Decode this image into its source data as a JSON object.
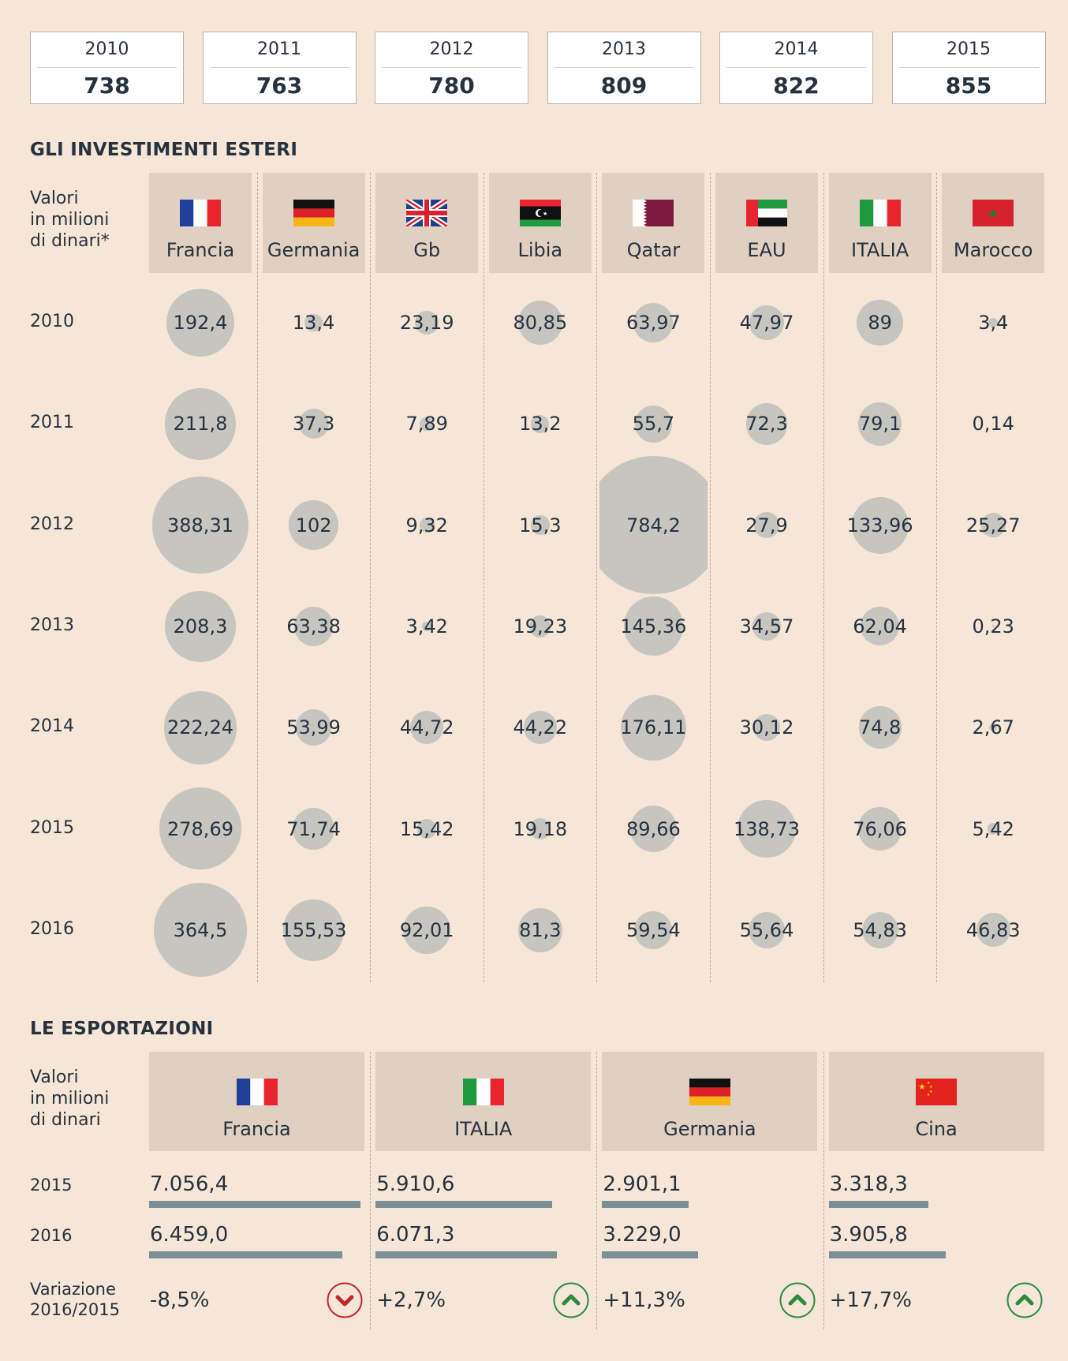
{
  "timeline": [
    {
      "year": "2010",
      "value": "738"
    },
    {
      "year": "2011",
      "value": "763"
    },
    {
      "year": "2012",
      "value": "780"
    },
    {
      "year": "2013",
      "value": "809"
    },
    {
      "year": "2014",
      "value": "822"
    },
    {
      "year": "2015",
      "value": "855"
    }
  ],
  "investments": {
    "title": "GLI INVESTIMENTI ESTERI",
    "unit_line1": "Valori",
    "unit_line2": "in milioni",
    "unit_line3": "di dinari*",
    "countries": [
      "Francia",
      "Germania",
      "Gb",
      "Libia",
      "Qatar",
      "EAU",
      "ITALIA",
      "Marocco"
    ],
    "flags": [
      "france-flag",
      "germany-flag",
      "uk-flag",
      "libya-flag",
      "qatar-flag",
      "uae-flag",
      "italy-flag",
      "morocco-flag"
    ]
  },
  "exports": {
    "title": "LE ESPORTAZIONI",
    "unit_line1": "Valori",
    "unit_line2": "in milioni",
    "unit_line3": "di dinari",
    "countries": [
      "Francia",
      "ITALIA",
      "Germania",
      "Cina"
    ],
    "flags": [
      "france-flag",
      "italy-flag",
      "germany-flag",
      "china-flag"
    ],
    "years": [
      "2015",
      "2016"
    ],
    "variation_label_line1": "Variazione",
    "variation_label_line2": "2016/2015",
    "variations": [
      "-8,5%",
      "+2,7%",
      "+11,3%",
      "+17,7%"
    ],
    "variation_direction": [
      "down",
      "up",
      "up",
      "up"
    ],
    "down_color": "#c0272d",
    "up_color": "#2e8b3e"
  },
  "chart_data": [
    {
      "type": "bubble",
      "title": "GLI INVESTIMENTI ESTERI",
      "categories": [
        "Francia",
        "Germania",
        "Gb",
        "Libia",
        "Qatar",
        "EAU",
        "ITALIA",
        "Marocco"
      ],
      "x": [
        "2010",
        "2011",
        "2012",
        "2013",
        "2014",
        "2015",
        "2016"
      ],
      "series": [
        {
          "name": "Francia",
          "values": [
            192.4,
            211.8,
            388.31,
            208.3,
            222.24,
            278.69,
            364.5
          ],
          "labels": [
            "192,4",
            "211,8",
            "388,31",
            "208,3",
            "222,24",
            "278,69",
            "364,5"
          ]
        },
        {
          "name": "Germania",
          "values": [
            13.4,
            37.3,
            102,
            63.38,
            53.99,
            71.74,
            155.53
          ],
          "labels": [
            "13,4",
            "37,3",
            "102",
            "63,38",
            "53,99",
            "71,74",
            "155,53"
          ]
        },
        {
          "name": "Gb",
          "values": [
            23.19,
            7.89,
            9.32,
            3.42,
            44.72,
            15.42,
            92.01
          ],
          "labels": [
            "23,19",
            "7,89",
            "9,32",
            "3,42",
            "44,72",
            "15,42",
            "92,01"
          ]
        },
        {
          "name": "Libia",
          "values": [
            80.85,
            13.2,
            15.3,
            19.23,
            44.22,
            19.18,
            81.3
          ],
          "labels": [
            "80,85",
            "13,2",
            "15,3",
            "19,23",
            "44,22",
            "19,18",
            "81,3"
          ]
        },
        {
          "name": "Qatar",
          "values": [
            63.97,
            55.7,
            784.2,
            145.36,
            176.11,
            89.66,
            59.54
          ],
          "labels": [
            "63,97",
            "55,7",
            "784,2",
            "145,36",
            "176,11",
            "89,66",
            "59,54"
          ]
        },
        {
          "name": "EAU",
          "values": [
            47.97,
            72.3,
            27.9,
            34.57,
            30.12,
            138.73,
            55.64
          ],
          "labels": [
            "47,97",
            "72,3",
            "27,9",
            "34,57",
            "30,12",
            "138,73",
            "55,64"
          ]
        },
        {
          "name": "ITALIA",
          "values": [
            89,
            79.1,
            133.96,
            62.04,
            74.8,
            76.06,
            54.83
          ],
          "labels": [
            "89",
            "79,1",
            "133,96",
            "62,04",
            "74,8",
            "76,06",
            "54,83"
          ]
        },
        {
          "name": "Marocco",
          "values": [
            3.4,
            0.14,
            25.27,
            0.23,
            2.67,
            5.42,
            46.83
          ],
          "labels": [
            "3,4",
            "0,14",
            "25,27",
            "0,23",
            "2,67",
            "5,42",
            "46,83"
          ]
        }
      ]
    },
    {
      "type": "bar",
      "title": "LE ESPORTAZIONI",
      "categories": [
        "Francia",
        "ITALIA",
        "Germania",
        "Cina"
      ],
      "series": [
        {
          "name": "2015",
          "values": [
            7056.4,
            5910.6,
            2901.1,
            3318.3
          ],
          "labels": [
            "7.056,4",
            "5.910,6",
            "2.901,1",
            "3.318,3"
          ]
        },
        {
          "name": "2016",
          "values": [
            6459.0,
            6071.3,
            3229.0,
            3905.8
          ],
          "labels": [
            "6.459,0",
            "6.071,3",
            "3.229,0",
            "3.905,8"
          ]
        }
      ]
    }
  ]
}
